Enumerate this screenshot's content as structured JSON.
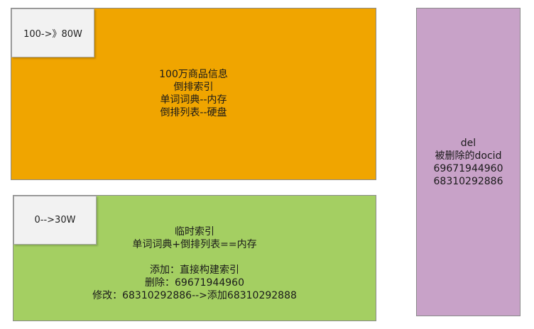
{
  "main_index": {
    "tag": "100->》80W",
    "lines": [
      "100万商品信息",
      "倒排索引",
      "单词词典--内存",
      "倒排列表--硬盘"
    ]
  },
  "temp_index": {
    "tag": "0-->30W",
    "lines": [
      "临时索引",
      "单词词典+倒排列表==内存",
      "",
      "添加：直接构建索引",
      "删除：69671944960",
      "修改：68310292886-->添加68310292888"
    ]
  },
  "deleted_docs": {
    "lines": [
      "del",
      "被删除的docid",
      "69671944960",
      "68310292886"
    ]
  },
  "colors": {
    "main_fill": "#f0a500",
    "temp_fill": "#a4cf62",
    "del_fill": "#c8a2c8",
    "tag_fill": "#f2f2f2"
  }
}
